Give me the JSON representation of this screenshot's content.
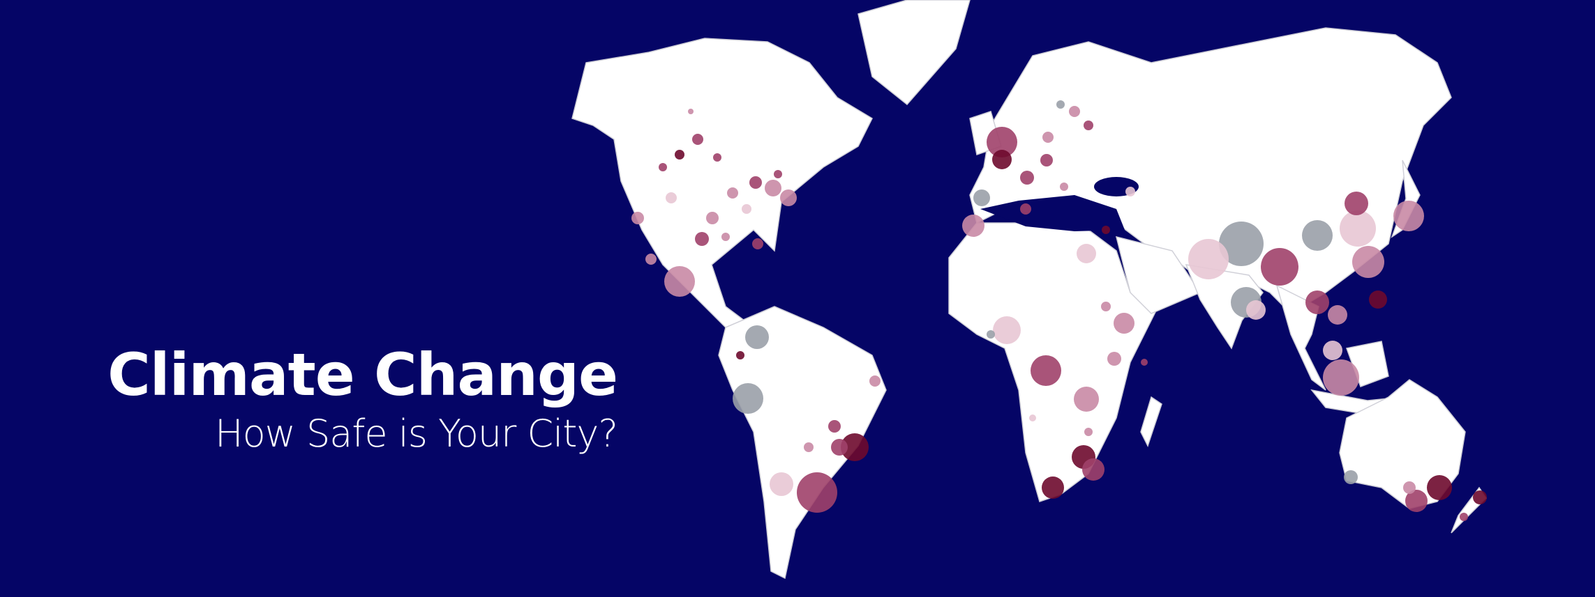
{
  "banner": {
    "title": "Climate Change",
    "subtitle": "How Safe is Your City?"
  },
  "map": {
    "projection": "world map, cities shown as proportional circles",
    "colors": {
      "ocean": "#050566",
      "land": "#ffffff",
      "borders": "#c8c8d0",
      "marker_dark": "#6e0a2e",
      "marker_mauve": "#a0416a",
      "marker_pink": "#c98aa5",
      "marker_light": "#e8c7d4",
      "marker_gray": "#9aa0a8"
    }
  }
}
